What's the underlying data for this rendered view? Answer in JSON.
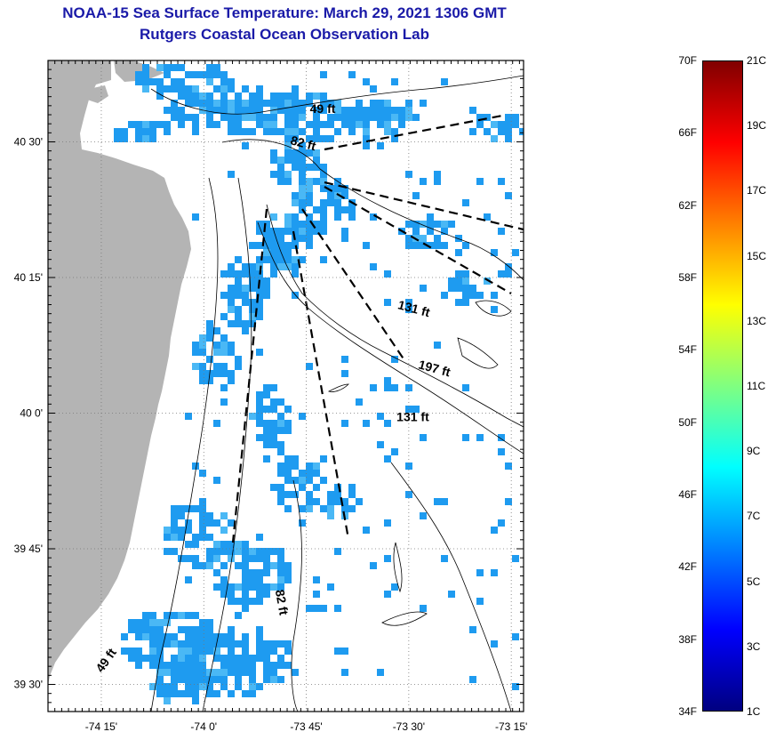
{
  "title": {
    "line1": "NOAA-15 Sea Surface Temperature:  March 29, 2021 1306 GMT",
    "line2": "Rutgers Coastal Ocean Observation Lab"
  },
  "map": {
    "lat_labels": [
      "40 30'",
      "40 15'",
      "40 0'",
      "39 45'",
      "39 30'"
    ],
    "lon_labels": [
      "-74 15'",
      "-74 0'",
      "-73 45'",
      "-73 30'",
      "-73 15'"
    ],
    "lat_values": [
      40.5,
      40.25,
      40.0,
      39.75,
      39.5
    ],
    "lon_values": [
      -74.25,
      -74.0,
      -73.75,
      -73.5,
      -73.25
    ],
    "lon_range": [
      -74.38,
      -73.22
    ],
    "lat_range": [
      39.45,
      40.65
    ],
    "grid": true,
    "land_color": "#b4b4b4",
    "sst_color": "#1e9bf0",
    "depth_labels": [
      {
        "text": "49 ft",
        "lon": -73.71,
        "lat": 40.553,
        "angle": 0
      },
      {
        "text": "82 ft",
        "lon": -73.76,
        "lat": 40.49,
        "angle": 15
      },
      {
        "text": "131 ft",
        "lon": -73.49,
        "lat": 40.185,
        "angle": 15
      },
      {
        "text": "197 ft",
        "lon": -73.44,
        "lat": 40.075,
        "angle": 15
      },
      {
        "text": "131 ft",
        "lon": -73.49,
        "lat": 39.985,
        "angle": 0
      },
      {
        "text": "82 ft",
        "lon": -73.82,
        "lat": 39.65,
        "angle": 80
      },
      {
        "text": "49 ft",
        "lon": -74.23,
        "lat": 39.54,
        "angle": -55
      }
    ]
  },
  "colorbar": {
    "fahrenheit": [
      "70F",
      "66F",
      "62F",
      "58F",
      "54F",
      "50F",
      "46F",
      "42F",
      "38F",
      "34F"
    ],
    "celsius": [
      "21C",
      "19C",
      "17C",
      "15C",
      "13C",
      "11C",
      "9C",
      "7C",
      "5C",
      "3C",
      "1C"
    ],
    "f_range": [
      34,
      70
    ],
    "c_range": [
      1,
      21
    ],
    "colors": [
      "#800000",
      "#ff0000",
      "#ff8000",
      "#ffff00",
      "#80ff80",
      "#00ffff",
      "#0080ff",
      "#0000ff",
      "#000080"
    ]
  }
}
